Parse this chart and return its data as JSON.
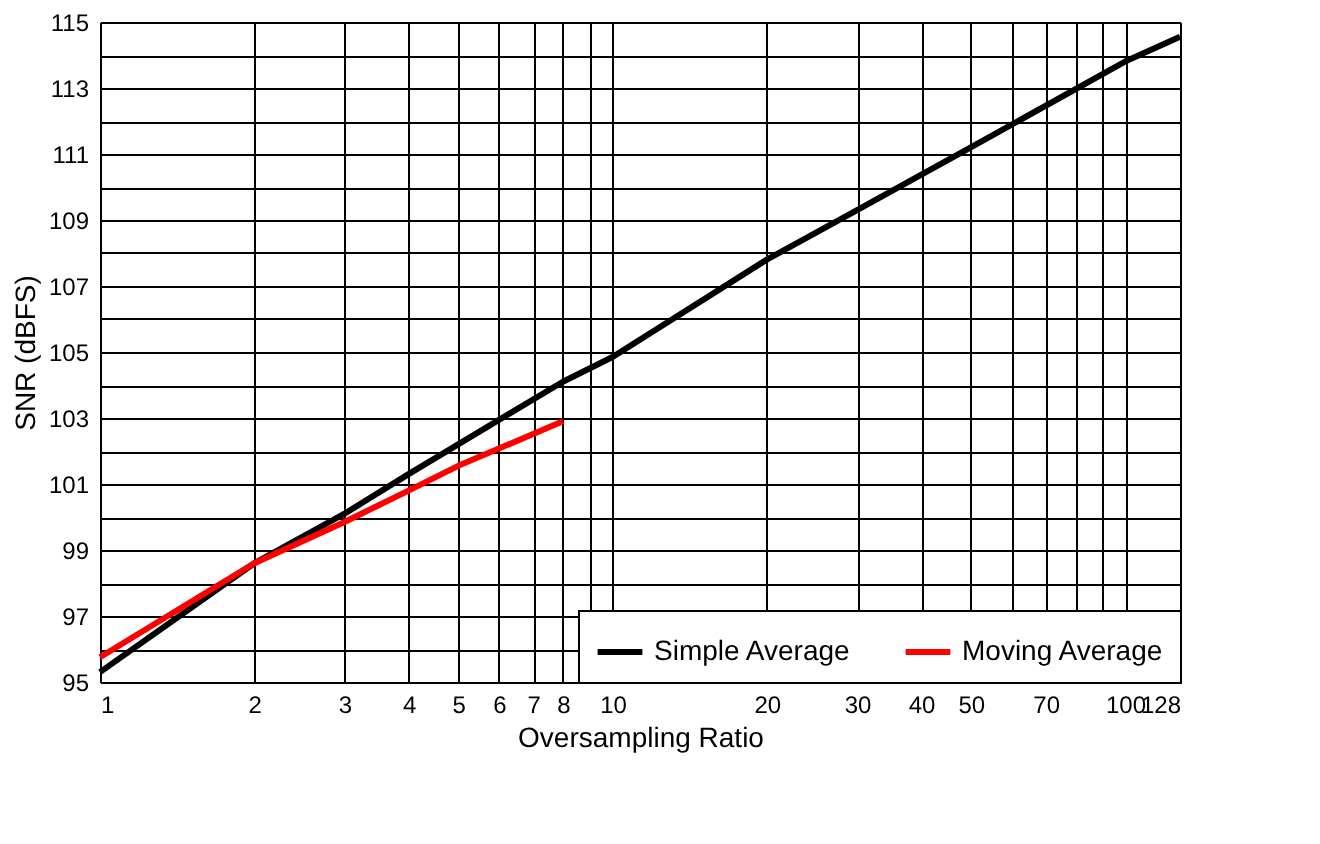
{
  "chart_data": {
    "type": "line",
    "xlabel": "Oversampling Ratio",
    "ylabel": "SNR (dBFS)",
    "log": "x",
    "xlim": [
      1,
      128
    ],
    "ylim": [
      95,
      115
    ],
    "xticks": [
      1,
      2,
      3,
      4,
      5,
      6,
      7,
      8,
      {
        "value": 9,
        "label": null
      },
      10,
      20,
      30,
      40,
      50,
      {
        "value": 60,
        "label": null
      },
      70,
      {
        "value": 80,
        "label": null
      },
      {
        "value": 90,
        "label": null
      },
      100,
      128
    ],
    "yticks": [
      95,
      {
        "value": 96,
        "label": null
      },
      97,
      {
        "value": 98,
        "label": null
      },
      99,
      {
        "value": 100,
        "label": null
      },
      101,
      {
        "value": 102,
        "label": null
      },
      103,
      {
        "value": 104,
        "label": null
      },
      105,
      {
        "value": 106,
        "label": null
      },
      107,
      {
        "value": 108,
        "label": null
      },
      109,
      {
        "value": 110,
        "label": null
      },
      111,
      {
        "value": 112,
        "label": null
      },
      113,
      {
        "value": 114,
        "label": null
      },
      115
    ],
    "grid": true,
    "legend": "bottom right",
    "marker": "none",
    "line_style": "solid",
    "series": [
      {
        "name": "Simple Average",
        "color": "#000000",
        "x": [
          1,
          2,
          3,
          4,
          8,
          10,
          20,
          30,
          50,
          100,
          128
        ],
        "values": [
          95.3,
          98.6,
          100.1,
          101.3,
          104.1,
          104.85,
          107.8,
          109.3,
          111.2,
          113.8,
          114.55
        ]
      },
      {
        "name": "Moving Average",
        "color": "#ff0000",
        "x": [
          1,
          2,
          3,
          4,
          5,
          8
        ],
        "values": [
          95.75,
          98.6,
          99.85,
          100.8,
          101.55,
          102.9
        ]
      }
    ]
  }
}
